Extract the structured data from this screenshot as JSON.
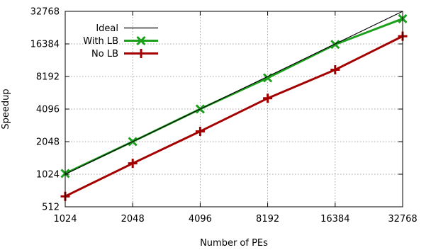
{
  "chart_data": {
    "type": "line",
    "xlabel": "Number of PEs",
    "ylabel": "Speedup",
    "x_scale": "log2",
    "y_scale": "log2",
    "xlim": [
      1024,
      32768
    ],
    "ylim": [
      512,
      32768
    ],
    "x_ticks": [
      "1024",
      "2048",
      "4096",
      "8192",
      "16384",
      "32768"
    ],
    "y_ticks": [
      "512",
      "1024",
      "2048",
      "4096",
      "8192",
      "16384",
      "32768"
    ],
    "grid": true,
    "legend_position": "top-left",
    "x": [
      1024,
      2048,
      4096,
      8192,
      16384,
      32768
    ],
    "series": [
      {
        "name": "Ideal",
        "color": "#000000",
        "marker": "none",
        "values": [
          1024,
          2048,
          4096,
          8192,
          16384,
          32768
        ]
      },
      {
        "name": "With LB",
        "color": "#1ca01c",
        "marker": "x",
        "values": [
          1040,
          2050,
          4100,
          7950,
          16200,
          28000
        ]
      },
      {
        "name": "No LB",
        "color": "#a40000",
        "marker": "plus",
        "values": [
          640,
          1290,
          2550,
          5150,
          9450,
          19300
        ]
      }
    ]
  }
}
